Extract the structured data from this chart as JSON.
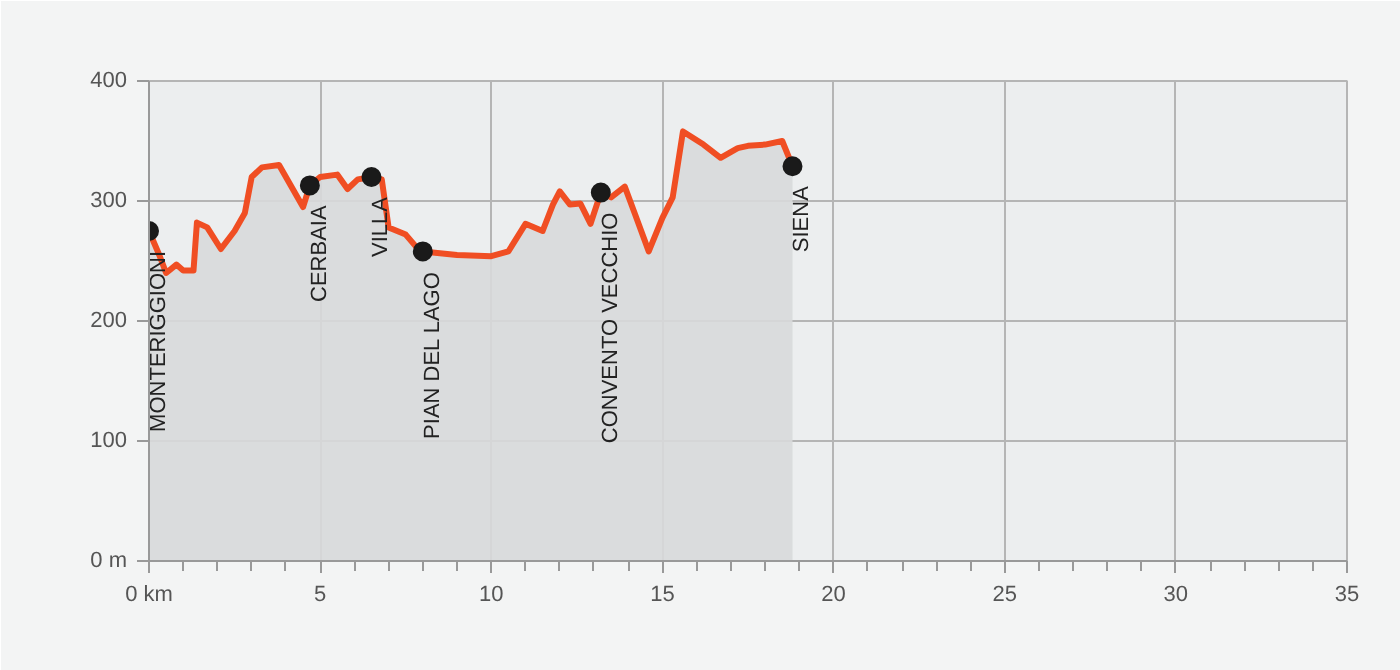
{
  "chart_data": {
    "type": "area",
    "x": [
      0,
      0.3,
      0.5,
      0.8,
      1.0,
      1.3,
      1.4,
      1.7,
      2.1,
      2.5,
      2.8,
      3.0,
      3.3,
      3.8,
      4.2,
      4.5,
      4.7,
      5.0,
      5.5,
      5.8,
      6.1,
      6.5,
      6.8,
      7.0,
      7.5,
      7.8,
      8.0,
      9.0,
      10.0,
      10.5,
      11.0,
      11.5,
      11.8,
      12.0,
      12.3,
      12.6,
      12.9,
      13.2,
      13.5,
      13.9,
      14.2,
      14.6,
      15.0,
      15.3,
      15.6,
      16.2,
      16.7,
      17.2,
      17.5,
      18.0,
      18.5,
      18.8
    ],
    "series": [
      {
        "color": "#f04e23",
        "values": [
          275,
          255,
          240,
          247,
          242,
          242,
          282,
          278,
          260,
          275,
          290,
          320,
          328,
          330,
          310,
          295,
          313,
          320,
          322,
          310,
          318,
          320,
          318,
          278,
          272,
          262,
          258,
          255,
          254,
          258,
          281,
          275,
          297,
          308,
          297,
          298,
          281,
          307,
          303,
          312,
          289,
          258,
          286,
          303,
          358,
          347,
          336,
          344,
          346,
          347,
          350,
          329
        ]
      },
      {
        "type": "scatter",
        "color": "#1a1a1a",
        "marker": "circle",
        "x": [
          0,
          4.7,
          6.5,
          8.0,
          13.2,
          18.8
        ],
        "values": [
          275,
          313,
          320,
          258,
          307,
          329
        ]
      }
    ],
    "annotations": [
      {
        "text": "MONTERIGGIONI",
        "x": 0,
        "y": 275
      },
      {
        "text": "CERBAIA",
        "x": 4.7,
        "y": 313
      },
      {
        "text": "VILLA",
        "x": 6.5,
        "y": 320
      },
      {
        "text": "PIAN DEL LAGO",
        "x": 8.0,
        "y": 258
      },
      {
        "text": "CONVENTO VECCHIO",
        "x": 13.2,
        "y": 307
      },
      {
        "text": "SIENA",
        "x": 18.8,
        "y": 329
      }
    ],
    "xlim": [
      0,
      35
    ],
    "ylim": [
      0,
      400
    ],
    "xticks": [
      {
        "value": 0,
        "label": "0 km"
      },
      5,
      10,
      15,
      20,
      25,
      30,
      35
    ],
    "yticks": [
      {
        "value": 0,
        "label": "0 m"
      },
      100,
      200,
      300,
      400
    ],
    "grid": true
  }
}
